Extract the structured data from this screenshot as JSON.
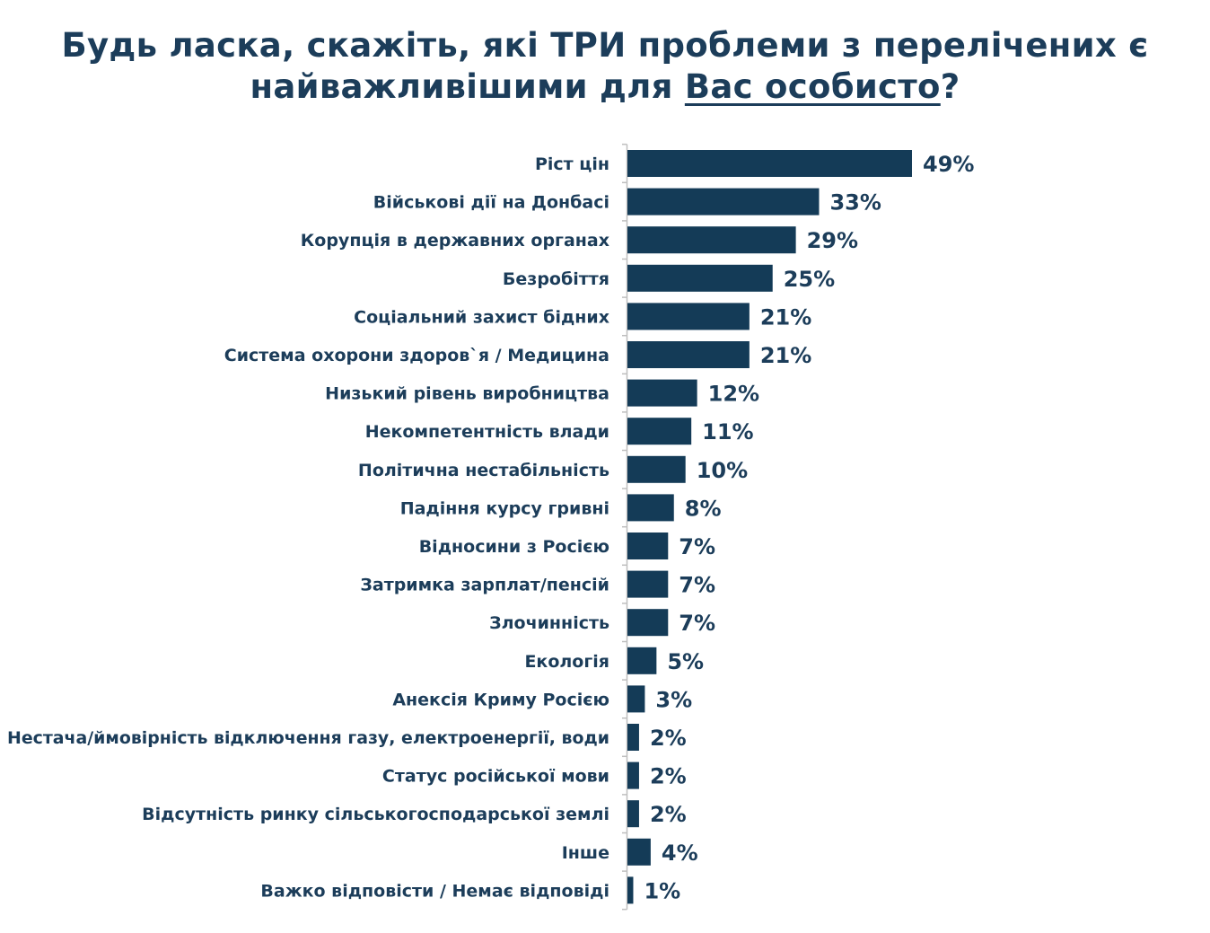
{
  "title": {
    "line1": "Будь ласка, скажіть, які ТРИ проблеми з перелічених є",
    "line2_before": "найважливішими для ",
    "line2_underlined": "Вас особисто",
    "line2_after": "?"
  },
  "chart_data": {
    "type": "bar",
    "orientation": "horizontal",
    "title": "Будь ласка, скажіть, які ТРИ проблеми з перелічених є найважливішими для Вас особисто?",
    "categories": [
      "Ріст цін",
      "Військові дії на Донбасі",
      "Корупція в державних органах",
      "Безробіття",
      "Соціальний захист бідних",
      "Система охорони здоров`я / Медицина",
      "Низький рівень виробництва",
      "Некомпетентність влади",
      "Політична нестабільність",
      "Падіння курсу гривні",
      "Відносини з Росією",
      "Затримка зарплат/пенсій",
      "Злочинність",
      "Екологія",
      "Анексія Криму Росією",
      "Нестача/ймовірність відключення газу, електроенергії, води",
      "Статус російської мови",
      "Відсутність ринку сільськогосподарської землі",
      "Інше",
      "Важко відповісти / Немає відповіді"
    ],
    "values": [
      49,
      33,
      29,
      25,
      21,
      21,
      12,
      11,
      10,
      8,
      7,
      7,
      7,
      5,
      3,
      2,
      2,
      2,
      4,
      1
    ],
    "value_labels": [
      "49%",
      "33%",
      "29%",
      "25%",
      "21%",
      "21%",
      "12%",
      "11%",
      "10%",
      "8%",
      "7%",
      "7%",
      "7%",
      "5%",
      "3%",
      "2%",
      "2%",
      "2%",
      "4%",
      "1%"
    ],
    "unit": "%",
    "xlim": [
      0,
      49
    ],
    "grid": false,
    "legend": "none",
    "bar_color": "#143b57",
    "text_color": "#1c3d5a",
    "axis_color": "#bfbfbf"
  }
}
